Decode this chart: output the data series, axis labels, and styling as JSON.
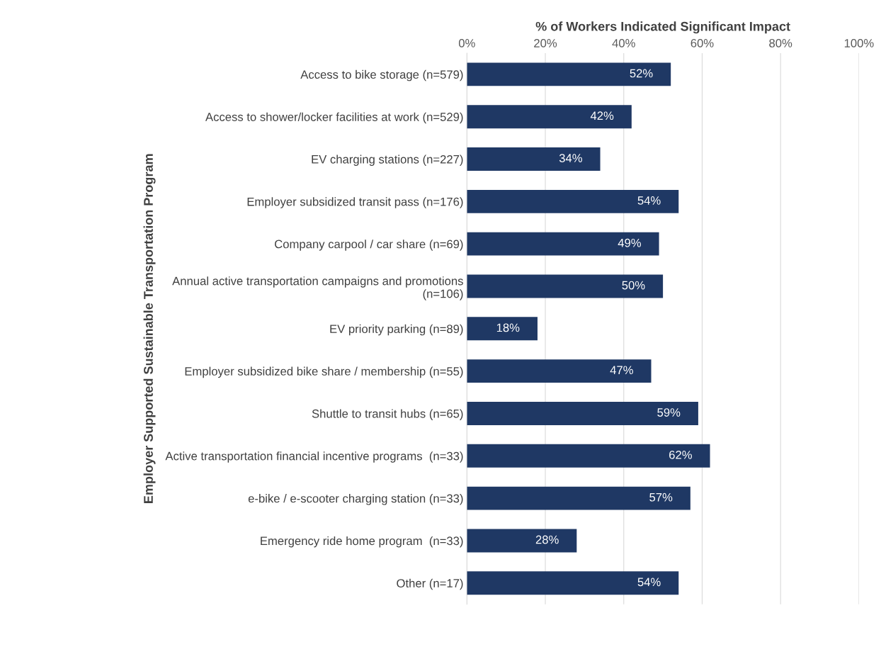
{
  "chart_data": {
    "type": "bar",
    "orientation": "horizontal",
    "xlabel": "% of Workers Indicated Significant Impact",
    "ylabel": "Employer Supported Sustainable Transportation Program",
    "categories": [
      "Access to bike storage (n=579)",
      "Access to shower/locker facilities at work (n=529)",
      "EV charging stations (n=227)",
      "Employer subsidized transit pass (n=176)",
      "Company carpool / car share (n=69)",
      "Annual active transportation campaigns and promotions\n(n=106)",
      "EV priority parking (n=89)",
      "Employer subsidized bike share / membership (n=55)",
      "Shuttle to transit hubs (n=65)",
      "Active transportation financial incentive programs  (n=33)",
      "e-bike / e-scooter charging station (n=33)",
      "Emergency ride home program  (n=33)",
      "Other (n=17)"
    ],
    "values": [
      52,
      42,
      34,
      54,
      49,
      50,
      18,
      47,
      59,
      62,
      57,
      28,
      54
    ],
    "value_labels": [
      "52%",
      "42%",
      "34%",
      "54%",
      "49%",
      "50%",
      "18%",
      "47%",
      "59%",
      "62%",
      "57%",
      "28%",
      "54%"
    ],
    "color": "#1f3864",
    "xlim": [
      0,
      100
    ],
    "xticks": [
      {
        "value": 0,
        "label": "0%"
      },
      {
        "value": 20,
        "label": "20%"
      },
      {
        "value": 40,
        "label": "40%"
      },
      {
        "value": 60,
        "label": "60%"
      },
      {
        "value": 80,
        "label": "80%"
      },
      {
        "value": 100,
        "label": "100%"
      }
    ],
    "grid": "x"
  }
}
